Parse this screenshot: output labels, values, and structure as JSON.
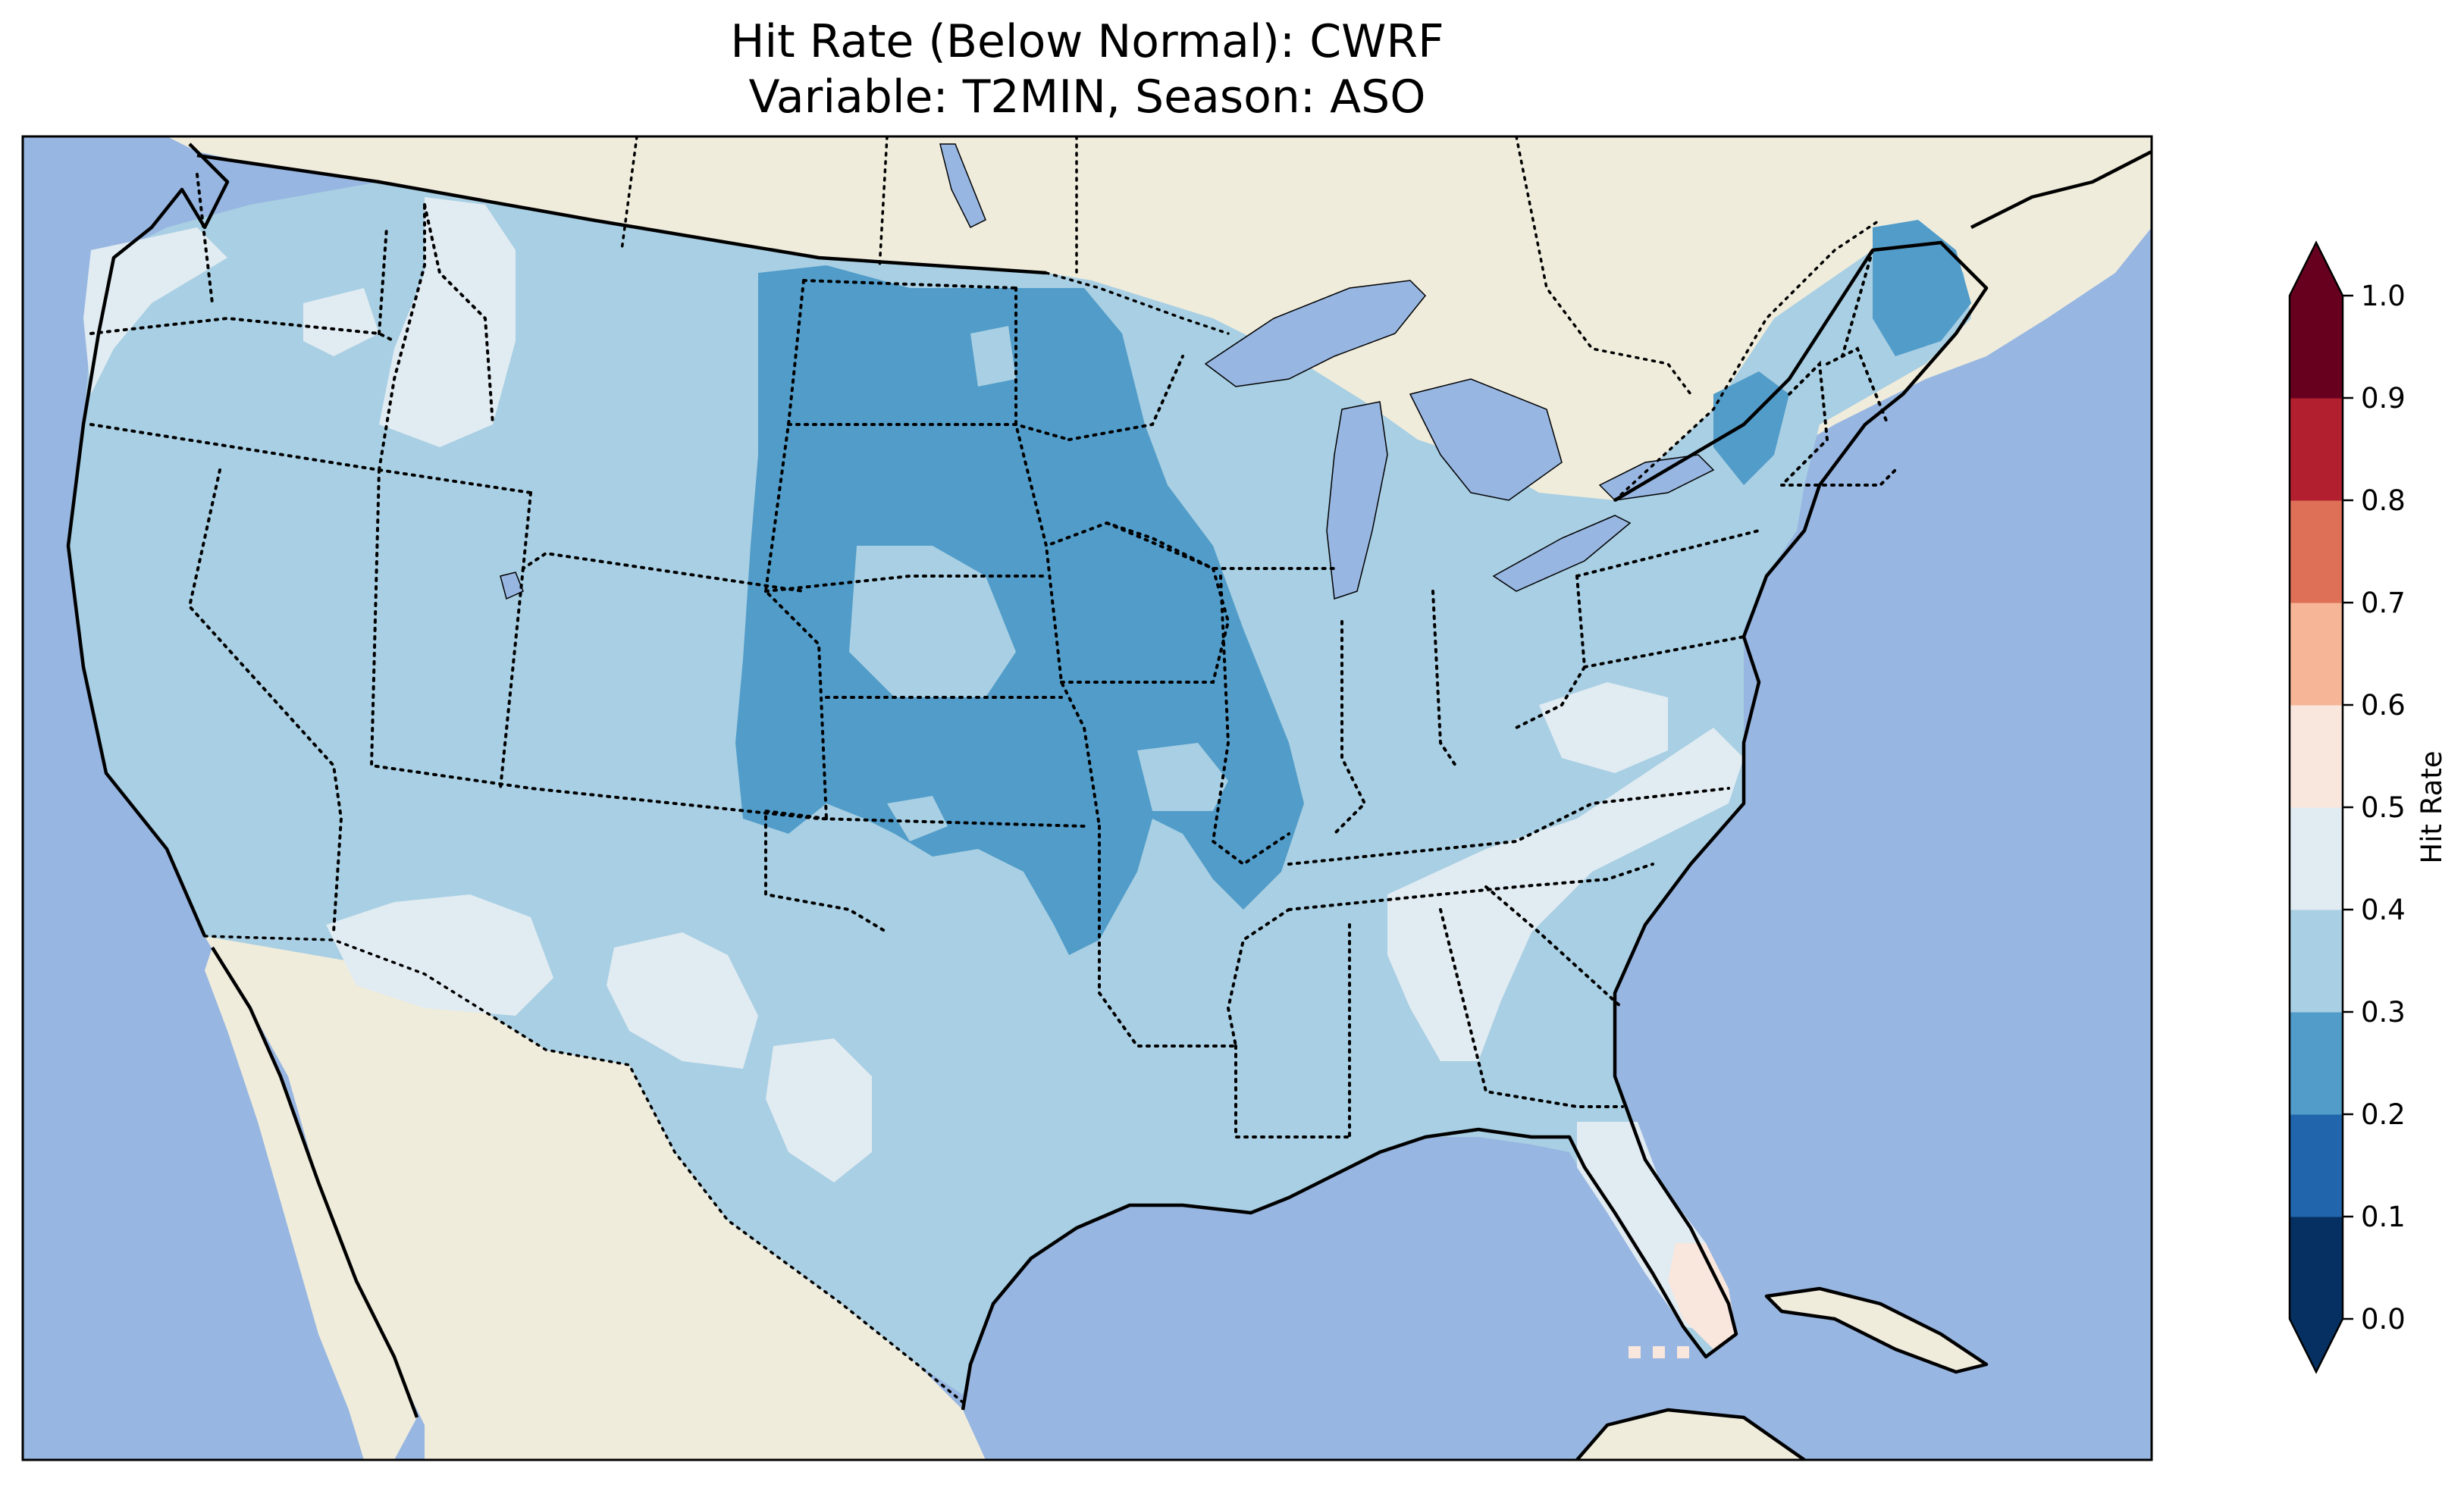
{
  "title": {
    "line1": "Hit Rate (Below Normal): CWRF",
    "line2": "Variable: T2MIN, Season: ASO"
  },
  "colors": {
    "ocean": "#97b6e1",
    "land": "#efecdc",
    "lakes": "#97b6e1"
  },
  "colorbar": {
    "label": "Hit Rate",
    "extend": "both",
    "ticks": [
      "0.0",
      "0.1",
      "0.2",
      "0.3",
      "0.4",
      "0.5",
      "0.6",
      "0.7",
      "0.8",
      "0.9",
      "1.0"
    ],
    "bins": [
      {
        "range": [
          0.0,
          0.1
        ],
        "color": "#053061"
      },
      {
        "range": [
          0.1,
          0.2
        ],
        "color": "#2166ac"
      },
      {
        "range": [
          0.2,
          0.3
        ],
        "color": "#519cc9"
      },
      {
        "range": [
          0.3,
          0.4
        ],
        "color": "#a8cfe3"
      },
      {
        "range": [
          0.4,
          0.5
        ],
        "color": "#e1ebf2"
      },
      {
        "range": [
          0.5,
          0.6
        ],
        "color": "#f9e6dc"
      },
      {
        "range": [
          0.6,
          0.7
        ],
        "color": "#f6b596"
      },
      {
        "range": [
          0.7,
          0.8
        ],
        "color": "#de7058"
      },
      {
        "range": [
          0.8,
          0.9
        ],
        "color": "#b2202f"
      },
      {
        "range": [
          0.9,
          1.0
        ],
        "color": "#67001f"
      }
    ],
    "under_color": "#053061",
    "over_color": "#67001f"
  },
  "map": {
    "projection": "Lambert Conformal",
    "extent": "Contiguous United States",
    "field": "hit rate, below-normal category",
    "regions": [
      {
        "name": "most of CONUS",
        "hit_rate_bin": "0.3-0.4"
      },
      {
        "name": "central Plains and Midwest",
        "hit_rate_bin": "0.2-0.3"
      },
      {
        "name": "northern Maine",
        "hit_rate_bin": "0.2-0.3"
      },
      {
        "name": "Pacific Northwest and Idaho",
        "hit_rate_bin": "0.4-0.5"
      },
      {
        "name": "southern Arizona / New Mexico / west Texas",
        "hit_rate_bin": "0.4-0.5"
      },
      {
        "name": "Southeast and Florida peninsula",
        "hit_rate_bin": "0.4-0.5"
      },
      {
        "name": "south Florida",
        "hit_rate_bin": "0.5-0.6"
      }
    ]
  }
}
